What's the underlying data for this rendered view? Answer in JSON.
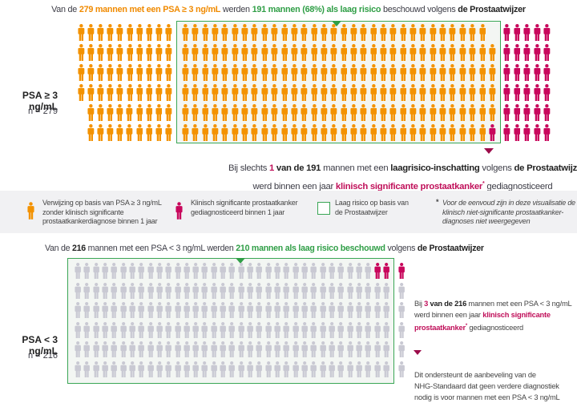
{
  "colors": {
    "referral": "#f39200",
    "significant": "#c8075c",
    "low_risk_box": "#3aa655",
    "psa_low": "#c9c9d3"
  },
  "top": {
    "headline": {
      "p1": "Van de ",
      "n1": "279 mannen met een PSA ≥ 3 ng/mL",
      "p2": " werden ",
      "n2": "191 mannen (68%) als laag risico",
      "p3": " beschouwd volgens ",
      "n3": "de Prostaatwijzer"
    },
    "group_label": "PSA ≥ 3 ng/mL",
    "n_label": "n = 279",
    "counts": {
      "total": 279,
      "low_risk": 191,
      "low_risk_significant": 1,
      "outside_significant": 30
    },
    "note": {
      "p1": "Bij slechts ",
      "n1": "1",
      "n2": " van de 191",
      "p2": " mannen met een ",
      "n3": "laagrisico-inschatting",
      "p3": " volgens ",
      "n4": "de Prostaatwijzer",
      "p4": "werd binnen een jaar ",
      "n5": "klinisch significante prostaatkanker",
      "star": "*",
      "p5": " gediagnosticeerd"
    }
  },
  "legend": {
    "referral": [
      "Verwijzing op basis van PSA ≥ 3 ng/mL",
      "zonder klinisch significante",
      "prostaatkankerdiagnose binnen 1 jaar"
    ],
    "significant": [
      "Klinisch significante prostaatkanker",
      "gediagnosticeerd binnen 1 jaar"
    ],
    "low_risk": [
      "Laag risico op basis van",
      "de Prostaatwijzer"
    ],
    "footnote_mark": "*",
    "footnote": [
      "Voor de eenvoud zijn in deze visualisatie de",
      "klinisch niet-significante prostaatkanker-",
      "diagnoses niet weergegeven"
    ]
  },
  "bottom": {
    "headline": {
      "p1": "Van de ",
      "n1": "216",
      "p2": " mannen met een PSA < 3 ng/mL werden ",
      "n2": "210 mannen als laag risico beschouwd",
      "p3": " volgens ",
      "n3": "de Prostaatwijzer"
    },
    "group_label": "PSA < 3 ng/mL",
    "n_label": "n = 216",
    "counts": {
      "total": 216,
      "low_risk": 210,
      "significant": 3
    },
    "note1": {
      "p1": "Bij ",
      "n1": "3",
      "n2": " van de 216",
      "p2": " mannen met een PSA < 3 ng/mL",
      "p3": "werd binnen een jaar ",
      "n3": "klinisch significante",
      "n4": "prostaatkanker",
      "star": "*",
      "p4": " gediagnosticeerd"
    },
    "note2": [
      "Dit ondersteunt de aanbeveling van de",
      "NHG-Standaard dat geen verdere diagnostiek",
      "nodig is voor mannen met een PSA < 3 ng/mL"
    ]
  }
}
